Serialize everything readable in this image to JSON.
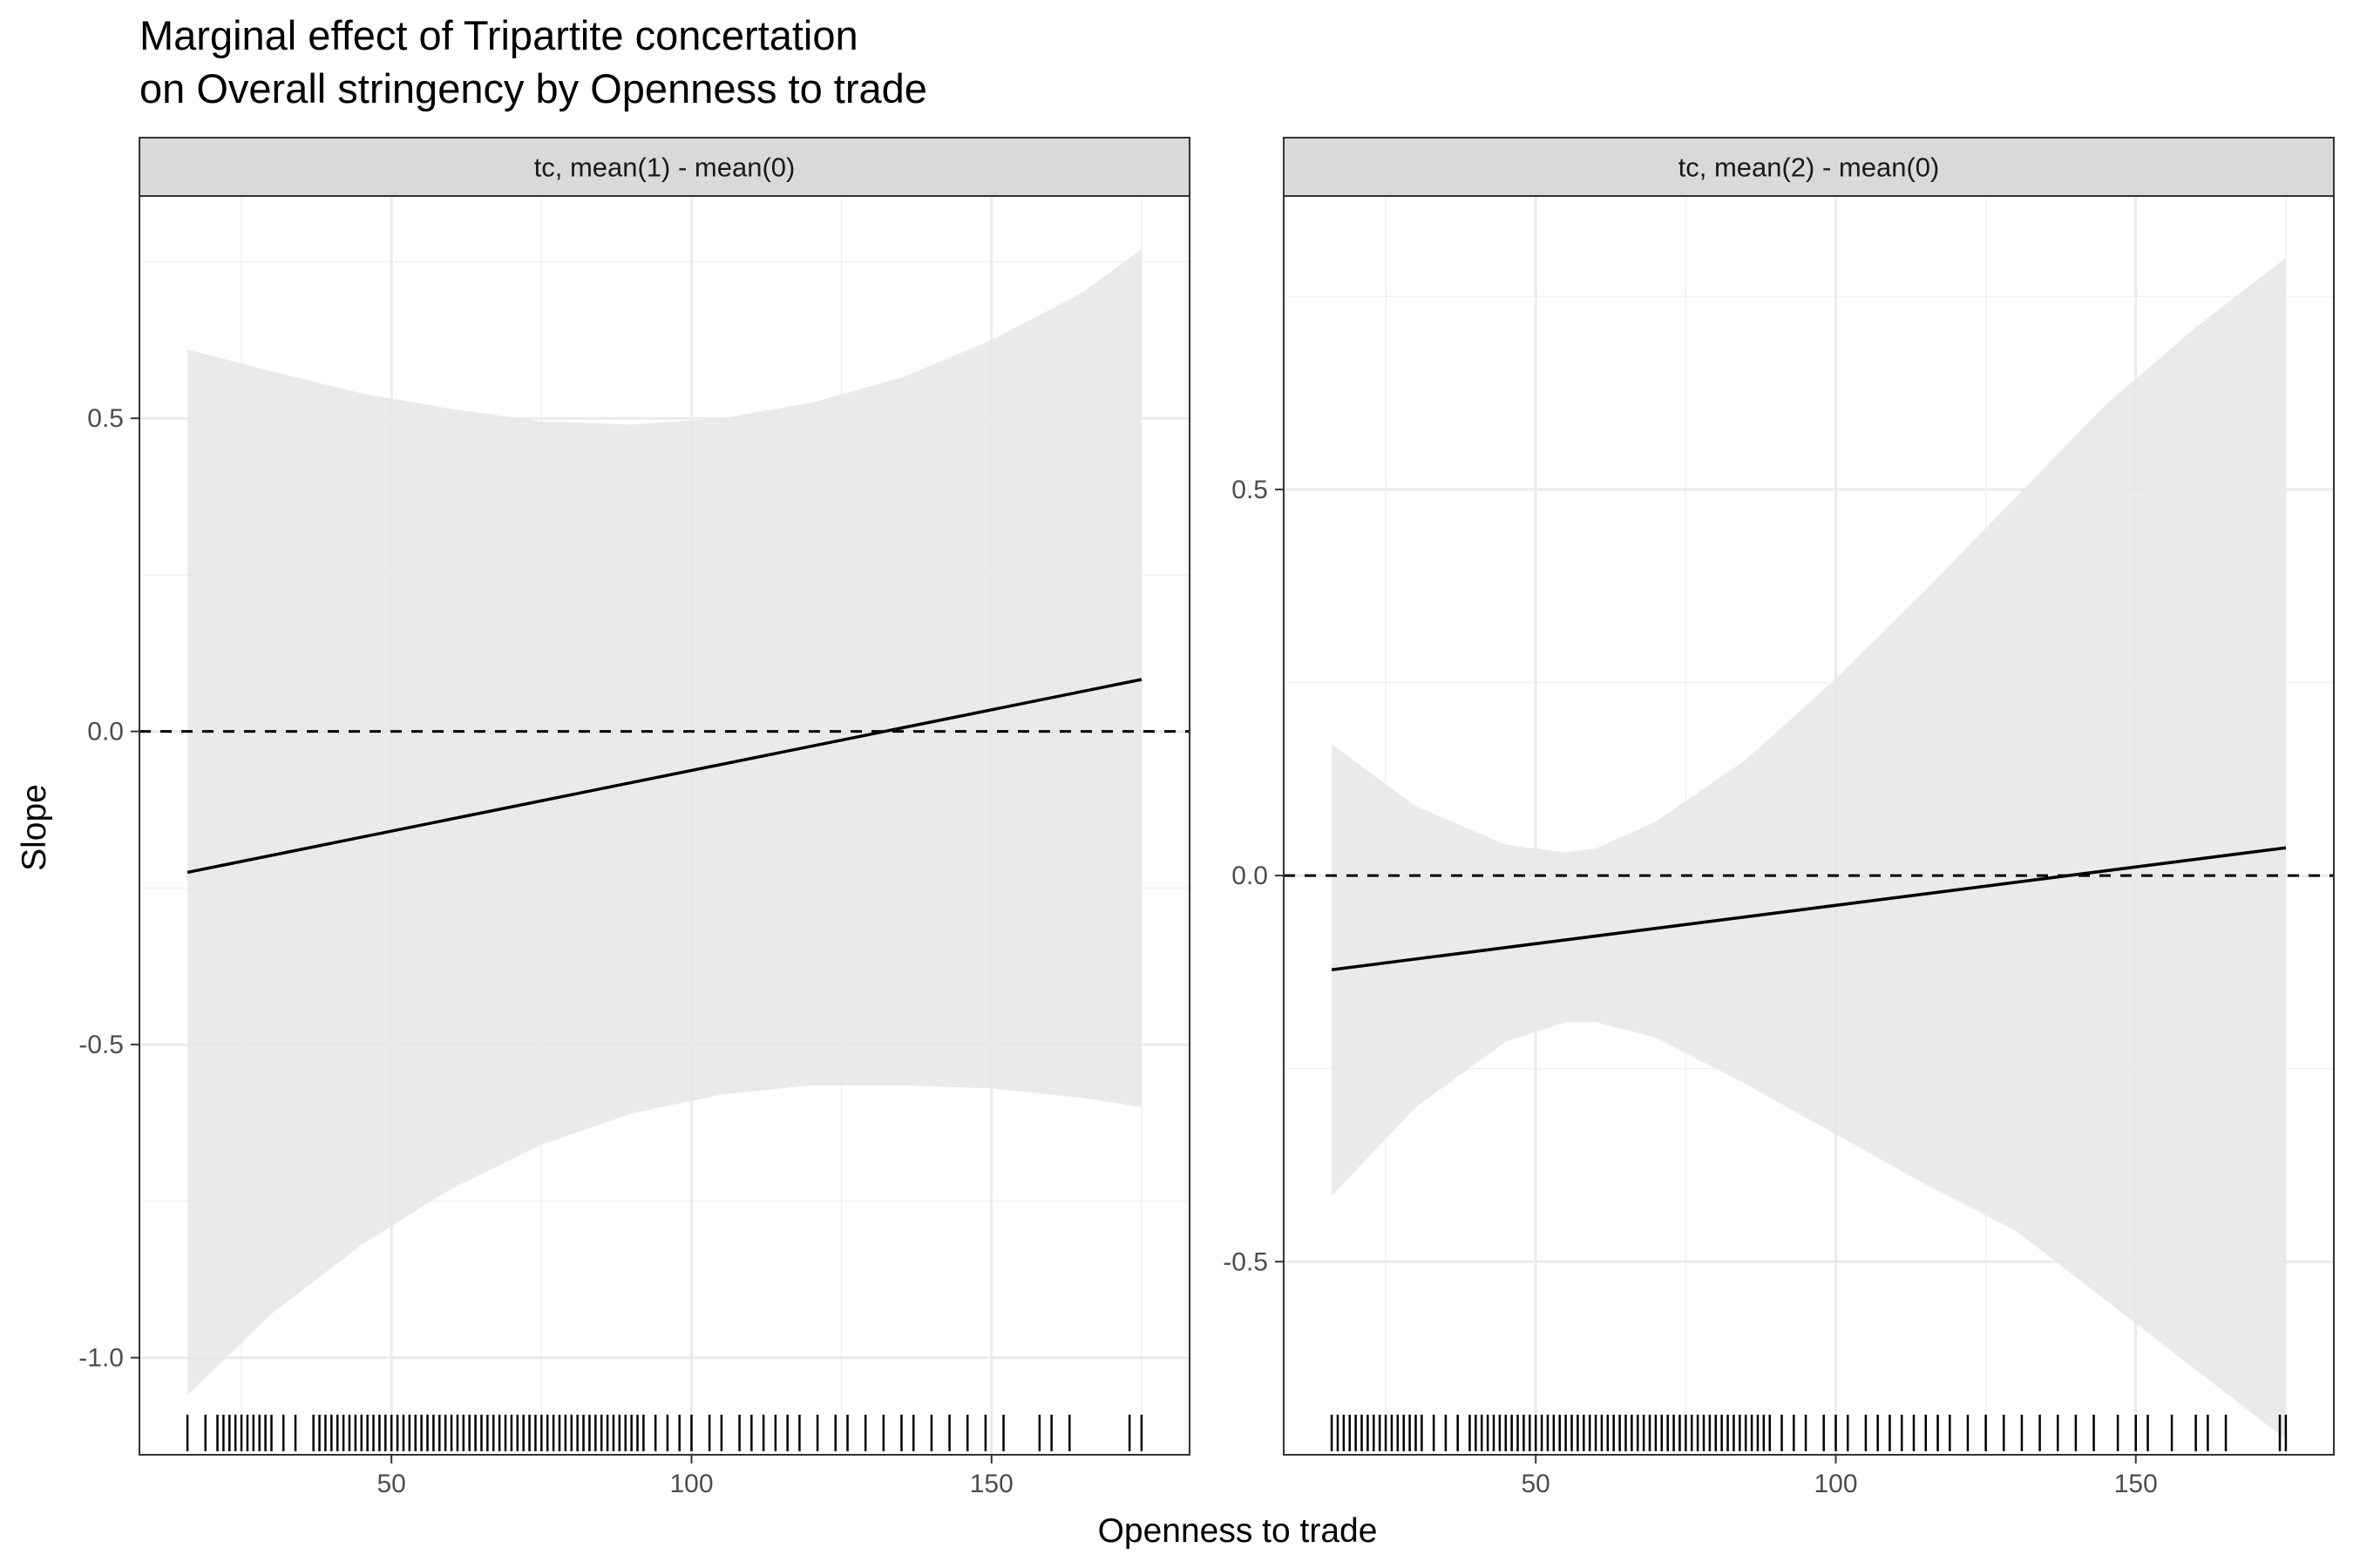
{
  "title_lines": [
    "Marginal effect of Tripartite concertation",
    "on Overall stringency by Openness to trade"
  ],
  "xlabel": "Openness to trade",
  "ylabel": "Slope",
  "chart_data": [
    {
      "type": "line",
      "panel": "tc, mean(1) - mean(0)",
      "xlabel": "Openness to trade",
      "ylabel": "Slope",
      "xlim": [
        8,
        183
      ],
      "ylim": [
        -1.155,
        0.855
      ],
      "x_ticks": [
        50,
        100,
        150
      ],
      "y_ticks": [
        -1.0,
        -0.5,
        0.0,
        0.5
      ],
      "y_tick_labels": [
        "-1.0",
        "-0.5",
        "0.0",
        "0.5"
      ],
      "reference_line": {
        "y": 0,
        "style": "dashed"
      },
      "series": [
        {
          "name": "estimate",
          "x": [
            16,
            175
          ],
          "y": [
            -0.225,
            0.083
          ]
        }
      ],
      "ribbon": {
        "x": [
          16,
          30,
          45,
          60,
          75,
          90,
          105,
          120,
          135,
          150,
          165,
          175
        ],
        "upper": [
          0.61,
          0.575,
          0.54,
          0.515,
          0.495,
          0.49,
          0.5,
          0.525,
          0.565,
          0.625,
          0.7,
          0.77
        ],
        "lower": [
          -1.06,
          -0.93,
          -0.82,
          -0.73,
          -0.66,
          -0.61,
          -0.58,
          -0.565,
          -0.565,
          -0.57,
          -0.585,
          -0.6
        ]
      },
      "rug_x": [
        16,
        19,
        21,
        22,
        23,
        24,
        25,
        26,
        27,
        28,
        29,
        30,
        32,
        34,
        37,
        38,
        39,
        40,
        41,
        42,
        43,
        44,
        45,
        46,
        47,
        48,
        49,
        50,
        51,
        52,
        53,
        54,
        55,
        56,
        57,
        58,
        59,
        60,
        61,
        62,
        63,
        64,
        65,
        66,
        67,
        68,
        69,
        70,
        71,
        72,
        73,
        74,
        75,
        76,
        77,
        78,
        79,
        80,
        81,
        82,
        83,
        84,
        85,
        86,
        87,
        88,
        89,
        90,
        91,
        92,
        94,
        96,
        98,
        100,
        103,
        105,
        108,
        110,
        112,
        114,
        116,
        118,
        121,
        124,
        126,
        129,
        132,
        135,
        137,
        140,
        143,
        146,
        149,
        152,
        158,
        160,
        163,
        173,
        175
      ]
    },
    {
      "type": "line",
      "panel": "tc, mean(2) - mean(0)",
      "xlabel": "Openness to trade",
      "ylabel": "Slope",
      "xlim": [
        8,
        183
      ],
      "ylim": [
        -0.75,
        0.88
      ],
      "x_ticks": [
        50,
        100,
        150
      ],
      "y_ticks": [
        -0.5,
        0.0,
        0.5
      ],
      "y_tick_labels": [
        "-0.5",
        "0.0",
        "0.5"
      ],
      "reference_line": {
        "y": 0,
        "style": "dashed"
      },
      "series": [
        {
          "name": "estimate",
          "x": [
            16,
            175
          ],
          "y": [
            -0.122,
            0.036
          ]
        }
      ],
      "ribbon": {
        "x": [
          16,
          30,
          45,
          55,
          60,
          70,
          85,
          100,
          115,
          130,
          145,
          160,
          175
        ],
        "upper": [
          0.17,
          0.09,
          0.04,
          0.03,
          0.035,
          0.07,
          0.15,
          0.255,
          0.37,
          0.49,
          0.61,
          0.71,
          0.8
        ],
        "lower": [
          -0.415,
          -0.3,
          -0.215,
          -0.19,
          -0.19,
          -0.21,
          -0.27,
          -0.335,
          -0.4,
          -0.46,
          -0.55,
          -0.64,
          -0.73
        ]
      },
      "rug_x": [
        16,
        17,
        18,
        19,
        20,
        21,
        22,
        23,
        24,
        25,
        26,
        27,
        28,
        29,
        30,
        31,
        33,
        35,
        37,
        39,
        40,
        41,
        42,
        43,
        44,
        45,
        46,
        47,
        48,
        49,
        50,
        51,
        52,
        53,
        54,
        55,
        56,
        57,
        58,
        59,
        60,
        61,
        62,
        63,
        64,
        65,
        66,
        67,
        68,
        69,
        70,
        71,
        72,
        73,
        74,
        75,
        76,
        77,
        78,
        79,
        80,
        81,
        82,
        83,
        84,
        85,
        86,
        87,
        88,
        89,
        91,
        93,
        95,
        98,
        100,
        102,
        105,
        107,
        109,
        111,
        113,
        115,
        117,
        119,
        122,
        125,
        128,
        131,
        134,
        137,
        140,
        143,
        147,
        150,
        152,
        156,
        160,
        162,
        165,
        174,
        175
      ]
    }
  ]
}
